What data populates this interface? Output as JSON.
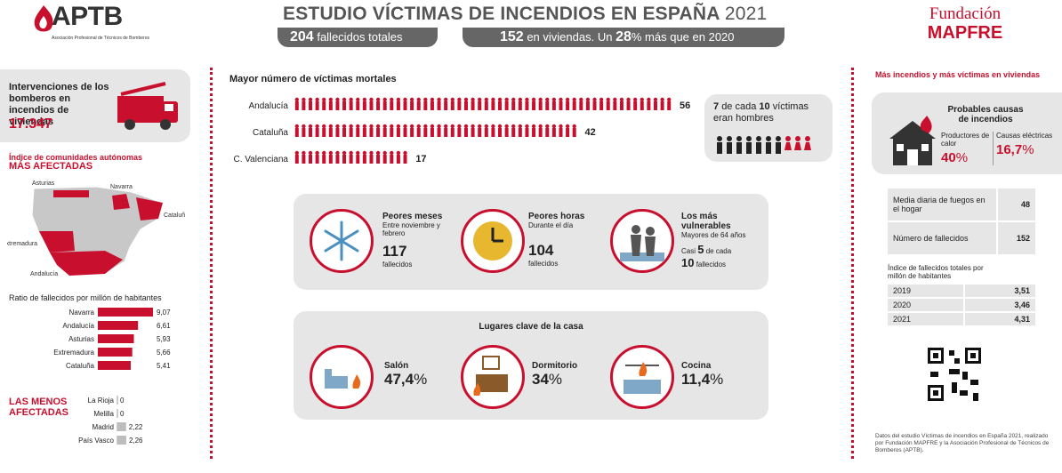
{
  "header": {
    "logo_left": "APTB",
    "logo_left_sub": "Asociación Profesional de Técnicos de Bomberos",
    "title": "ESTUDIO VÍCTIMAS DE INCENDIOS EN ESPAÑA",
    "year": "2021",
    "pill1_num": "204",
    "pill1_text": "fallecidos totales",
    "pill2_num1": "152",
    "pill2_text1": "en viviendas. Un",
    "pill2_num2": "28",
    "pill2_text2": "% más que en 2020",
    "logo_right_1": "Fundación",
    "logo_right_2": "MAPFRE"
  },
  "left": {
    "interv_label": "Intervenciones de los bomberos en incendios de viviendas",
    "interv_value": "17.347",
    "index_title_1": "Índice de comunidades autónomas",
    "index_title_2": "MÁS AFECTADAS",
    "map_labels": [
      "Asturias",
      "Navarra",
      "Cataluña",
      "Extremadura",
      "Andalucía"
    ],
    "ratio_title": "Ratio de fallecidos por millón de habitantes",
    "least_title_1": "LAS MENOS",
    "least_title_2": "AFECTADAS"
  },
  "chart_data": [
    {
      "type": "bar",
      "title": "Ratio de fallecidos por millón de habitantes",
      "categories": [
        "Navarra",
        "Andalucía",
        "Asturias",
        "Extremadura",
        "Cataluña"
      ],
      "values": [
        9.07,
        6.61,
        5.93,
        5.66,
        5.41
      ],
      "value_labels": [
        "9,07",
        "6,61",
        "5,93",
        "5,66",
        "5,41"
      ],
      "color": "#c8102e"
    },
    {
      "type": "bar",
      "title": "LAS MENOS AFECTADAS",
      "categories": [
        "La Rioja",
        "Melilla",
        "Madrid",
        "País Vasco"
      ],
      "values": [
        0,
        0,
        2.22,
        2.26
      ],
      "value_labels": [
        "0",
        "0",
        "2,22",
        "2,26"
      ],
      "color": "#bdbdbd"
    },
    {
      "type": "bar",
      "title": "Mayor número de víctimas mortales",
      "categories": [
        "Andalucía",
        "Cataluña",
        "C. Valenciana"
      ],
      "values": [
        56,
        42,
        17
      ],
      "value_labels": [
        "56",
        "42",
        "17"
      ],
      "color": "#c8102e"
    }
  ],
  "center": {
    "victims_title": "Mayor número de víctimas mortales",
    "men_1": "7",
    "men_2": "de cada",
    "men_3": "10",
    "men_4": "víctimas",
    "men_5": "eran hombres",
    "peores_meses_title": "Peores meses",
    "peores_meses_sub": "Entre noviembre y febrero",
    "peores_meses_num": "117",
    "peores_meses_unit": "fallecidos",
    "peores_horas_title": "Peores horas",
    "peores_horas_sub": "Durante el día",
    "peores_horas_num": "104",
    "peores_horas_unit": "fallecidos",
    "vuln_title": "Los más vulnerables",
    "vuln_sub": "Mayores de 64 años",
    "vuln_1": "Casi",
    "vuln_2": "5",
    "vuln_3": "de cada",
    "vuln_4": "10",
    "vuln_5": "fallecidos",
    "lugares_title": "Lugares clave de la casa",
    "salon_label": "Salón",
    "salon_num": "47,4",
    "dorm_label": "Dormitorio",
    "dorm_num": "34",
    "cocina_label": "Cocina",
    "cocina_num": "11,4",
    "pct": "%"
  },
  "right": {
    "title": "Más incendios y más víctimas en viviendas",
    "causes_title": "Probables causas de incendios",
    "cause1_label": "Productores de calor",
    "cause1_value": "40",
    "cause2_label": "Causas eléctricas",
    "cause2_value": "16,7",
    "pct": "%",
    "table1": [
      {
        "label": "Media diaria de fuegos en el hogar",
        "value": "48"
      },
      {
        "label": "Número de fallecidos",
        "value": "152"
      }
    ],
    "index_title": "Índice de fallecidos totales por millón de habitantes",
    "table2": [
      {
        "label": "2019",
        "value": "3,51"
      },
      {
        "label": "2020",
        "value": "3,46"
      },
      {
        "label": "2021",
        "value": "4,31"
      }
    ],
    "footnote": "Datos del estudio Víctimas de incendios en España 2021, realizado por Fundación MAPFRE y la Asociación Profesional de Técnicos de Bomberos (APTB)."
  }
}
